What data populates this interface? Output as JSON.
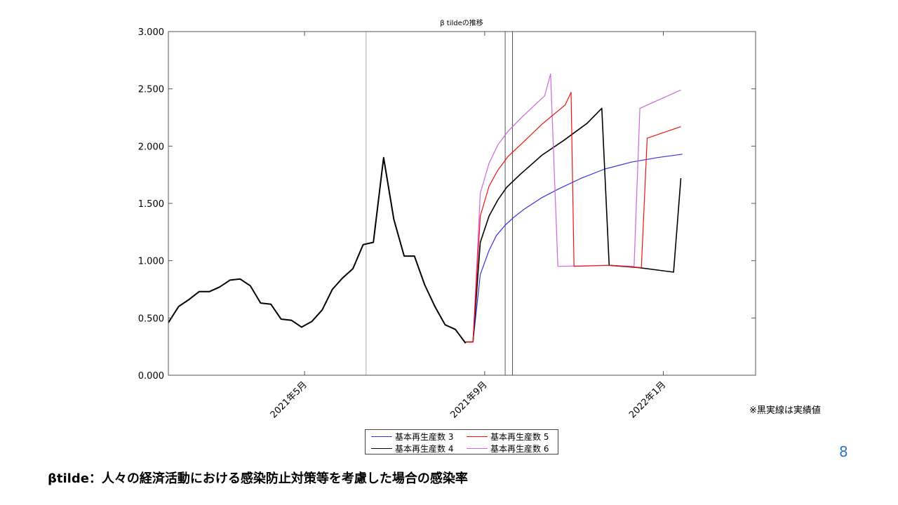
{
  "chart_data": {
    "type": "line",
    "title": "β tildeの推移",
    "xlabel": "",
    "ylabel": "",
    "x_ticks": [
      {
        "date": "2021-05-01",
        "label": "2021年5月"
      },
      {
        "date": "2021-09-01",
        "label": "2021年9月"
      },
      {
        "date": "2022-01-01",
        "label": "2022年1月"
      }
    ],
    "x_range": [
      "2021-01-28",
      "2022-03-05"
    ],
    "y_ticks": [
      "0.000",
      "0.500",
      "1.000",
      "1.500",
      "2.000",
      "2.500",
      "3.000"
    ],
    "y_range": [
      0,
      3
    ],
    "grid": false,
    "vertical_markers": [
      {
        "date": "2021-06-12",
        "color": "#aaaaaa"
      },
      {
        "date": "2021-09-15",
        "color": "#555555"
      },
      {
        "date": "2021-09-20",
        "color": "#555555"
      }
    ],
    "actual": {
      "color": "#000000",
      "points": [
        [
          "2021-01-28",
          0.46
        ],
        [
          "2021-02-04",
          0.6
        ],
        [
          "2021-02-11",
          0.66
        ],
        [
          "2021-02-18",
          0.73
        ],
        [
          "2021-02-25",
          0.73
        ],
        [
          "2021-03-04",
          0.77
        ],
        [
          "2021-03-11",
          0.83
        ],
        [
          "2021-03-18",
          0.84
        ],
        [
          "2021-03-25",
          0.78
        ],
        [
          "2021-04-01",
          0.63
        ],
        [
          "2021-04-08",
          0.62
        ],
        [
          "2021-04-15",
          0.49
        ],
        [
          "2021-04-22",
          0.48
        ],
        [
          "2021-04-29",
          0.42
        ],
        [
          "2021-05-06",
          0.47
        ],
        [
          "2021-05-13",
          0.57
        ],
        [
          "2021-05-20",
          0.75
        ],
        [
          "2021-05-27",
          0.85
        ],
        [
          "2021-06-03",
          0.93
        ],
        [
          "2021-06-10",
          1.14
        ],
        [
          "2021-06-17",
          1.16
        ],
        [
          "2021-06-24",
          1.9
        ],
        [
          "2021-07-01",
          1.36
        ],
        [
          "2021-07-08",
          1.04
        ],
        [
          "2021-07-15",
          1.04
        ],
        [
          "2021-07-22",
          0.79
        ],
        [
          "2021-07-29",
          0.6
        ],
        [
          "2021-08-05",
          0.44
        ],
        [
          "2021-08-12",
          0.4
        ],
        [
          "2021-08-19",
          0.28
        ]
      ]
    },
    "series": [
      {
        "name": "基本再生産数 3",
        "color": "#3333dd",
        "points": [
          [
            "2021-08-19",
            0.29
          ],
          [
            "2021-08-24",
            0.29
          ],
          [
            "2021-08-29",
            0.88
          ],
          [
            "2021-09-04",
            1.09
          ],
          [
            "2021-09-09",
            1.22
          ],
          [
            "2021-09-15",
            1.31
          ],
          [
            "2021-09-21",
            1.38
          ],
          [
            "2021-09-28",
            1.45
          ],
          [
            "2021-10-10",
            1.55
          ],
          [
            "2021-10-22",
            1.63
          ],
          [
            "2021-11-06",
            1.72
          ],
          [
            "2021-11-22",
            1.8
          ],
          [
            "2021-12-10",
            1.86
          ],
          [
            "2021-12-28",
            1.9
          ],
          [
            "2022-01-14",
            1.93
          ]
        ]
      },
      {
        "name": "基本再生産数 4",
        "color": "#000000",
        "points": [
          [
            "2021-08-19",
            0.29
          ],
          [
            "2021-08-24",
            0.29
          ],
          [
            "2021-08-29",
            1.16
          ],
          [
            "2021-09-04",
            1.39
          ],
          [
            "2021-09-10",
            1.53
          ],
          [
            "2021-09-16",
            1.64
          ],
          [
            "2021-09-25",
            1.75
          ],
          [
            "2021-10-10",
            1.92
          ],
          [
            "2021-10-25",
            2.05
          ],
          [
            "2021-11-10",
            2.2
          ],
          [
            "2021-11-20",
            2.33
          ],
          [
            "2021-11-25",
            0.96
          ],
          [
            "2021-12-15",
            0.94
          ],
          [
            "2022-01-08",
            0.9
          ],
          [
            "2022-01-13",
            1.72
          ]
        ]
      },
      {
        "name": "基本再生産数 5",
        "color": "#ee1111",
        "points": [
          [
            "2021-08-19",
            0.29
          ],
          [
            "2021-08-24",
            0.29
          ],
          [
            "2021-08-29",
            1.39
          ],
          [
            "2021-09-04",
            1.65
          ],
          [
            "2021-09-10",
            1.79
          ],
          [
            "2021-09-17",
            1.91
          ],
          [
            "2021-09-27",
            2.03
          ],
          [
            "2021-10-10",
            2.19
          ],
          [
            "2021-10-26",
            2.36
          ],
          [
            "2021-10-30",
            2.47
          ],
          [
            "2021-11-01",
            0.95
          ],
          [
            "2021-11-25",
            0.96
          ],
          [
            "2021-12-17",
            0.94
          ],
          [
            "2021-12-21",
            2.07
          ],
          [
            "2022-01-13",
            2.17
          ]
        ]
      },
      {
        "name": "基本再生産数 6",
        "color": "#cc66dd",
        "points": [
          [
            "2021-08-19",
            0.29
          ],
          [
            "2021-08-24",
            0.29
          ],
          [
            "2021-08-29",
            1.59
          ],
          [
            "2021-09-04",
            1.85
          ],
          [
            "2021-09-10",
            2.01
          ],
          [
            "2021-09-17",
            2.13
          ],
          [
            "2021-09-27",
            2.26
          ],
          [
            "2021-10-12",
            2.44
          ],
          [
            "2021-10-16",
            2.63
          ],
          [
            "2021-10-21",
            0.95
          ],
          [
            "2021-11-25",
            0.96
          ],
          [
            "2021-12-12",
            0.95
          ],
          [
            "2021-12-16",
            2.33
          ],
          [
            "2022-01-13",
            2.49
          ]
        ]
      }
    ],
    "legend_placement": "bottom-center"
  },
  "note": "※黒実線は実績値",
  "page_number": "8",
  "caption": "βtilde：人々の経済活動における感染防止対策等を考慮した場合の感染率"
}
